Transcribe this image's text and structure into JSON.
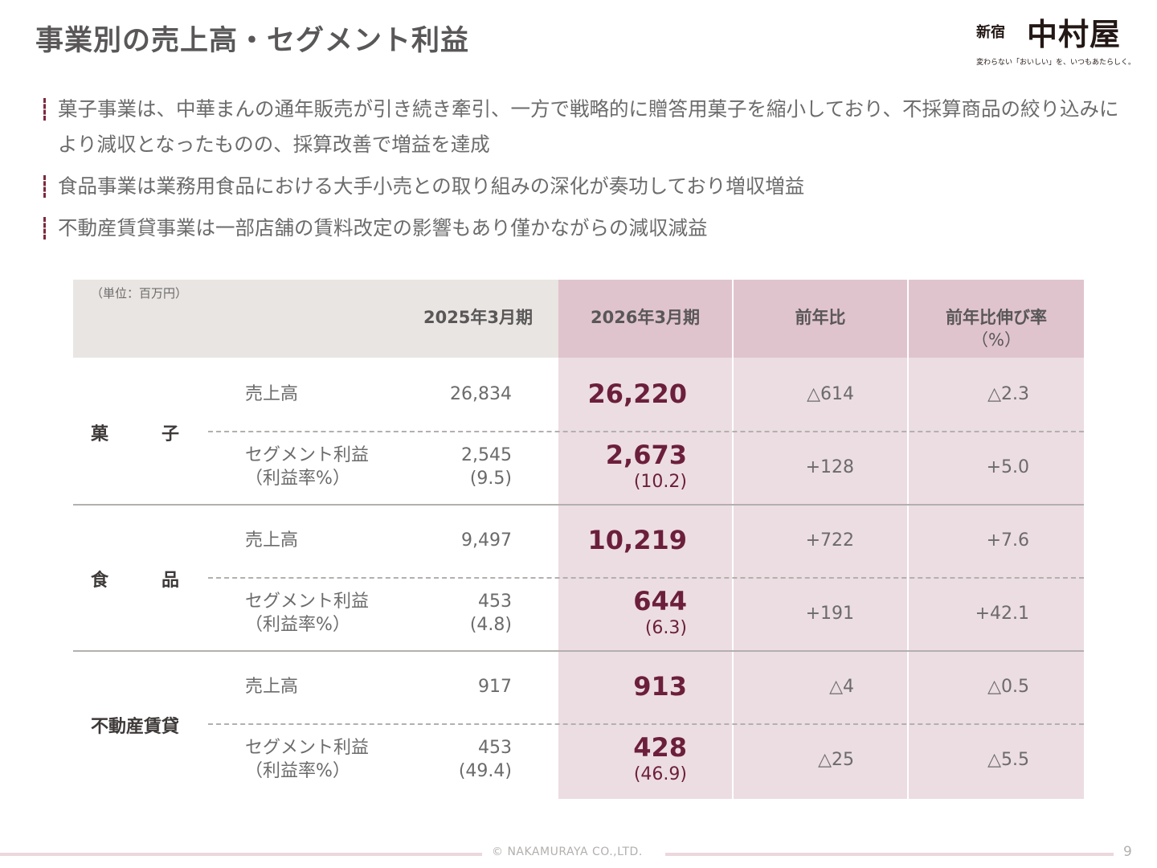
{
  "header": {
    "title": "事業別の売上高・セグメント利益",
    "logo_small": "新宿",
    "logo_main": "中村屋",
    "logo_tagline": "変わらない「おいしい」を、いつもあたらしく。"
  },
  "bullets": [
    "菓子事業は、中華まんの通年販売が引き続き牽引、一方で戦略的に贈答用菓子を縮小しており、不採算商品の絞り込みにより減収となったものの、採算改善で増益を達成",
    "食品事業は業務用食品における大手小売との取り組みの深化が奏功しており増収増益",
    "不動産賃貸事業は一部店舗の賃料改定の影響もあり僅かながらの減収減益"
  ],
  "table": {
    "unit": "（単位：百万円）",
    "columns": [
      "2025年3月期",
      "2026年3月期",
      "前年比",
      "前年比伸び率",
      "（%）"
    ],
    "segments": [
      {
        "name": "菓　　　子",
        "rows": [
          {
            "label": "売上高",
            "label2": "",
            "prev": "26,834",
            "prev2": "",
            "curr": "26,220",
            "curr2": "",
            "diff": "△614",
            "rate": "△2.3"
          },
          {
            "label": "セグメント利益",
            "label2": "（利益率%）",
            "prev": "2,545",
            "prev2": "(9.5)",
            "curr": "2,673",
            "curr2": "(10.2)",
            "diff": "+128",
            "rate": "+5.0"
          }
        ]
      },
      {
        "name": "食　　　品",
        "rows": [
          {
            "label": "売上高",
            "label2": "",
            "prev": "9,497",
            "prev2": "",
            "curr": "10,219",
            "curr2": "",
            "diff": "+722",
            "rate": "+7.6"
          },
          {
            "label": "セグメント利益",
            "label2": "（利益率%）",
            "prev": "453",
            "prev2": "(4.8)",
            "curr": "644",
            "curr2": "(6.3)",
            "diff": "+191",
            "rate": "+42.1"
          }
        ]
      },
      {
        "name": "不動産賃貸",
        "rows": [
          {
            "label": "売上高",
            "label2": "",
            "prev": "917",
            "prev2": "",
            "curr": "913",
            "curr2": "",
            "diff": "△4",
            "rate": "△0.5"
          },
          {
            "label": "セグメント利益",
            "label2": "（利益率%）",
            "prev": "453",
            "prev2": "(49.4)",
            "curr": "428",
            "curr2": "(46.9)",
            "diff": "△25",
            "rate": "△5.5"
          }
        ]
      }
    ]
  },
  "footer": {
    "copyright": "© NAKAMURAYA CO.,LTD.",
    "page": "9"
  },
  "colors": {
    "accent": "#6b1f3b",
    "header_pink": "#e0c4cd",
    "body_pink": "#ecdde2",
    "header_gray": "#e9e5e2"
  }
}
